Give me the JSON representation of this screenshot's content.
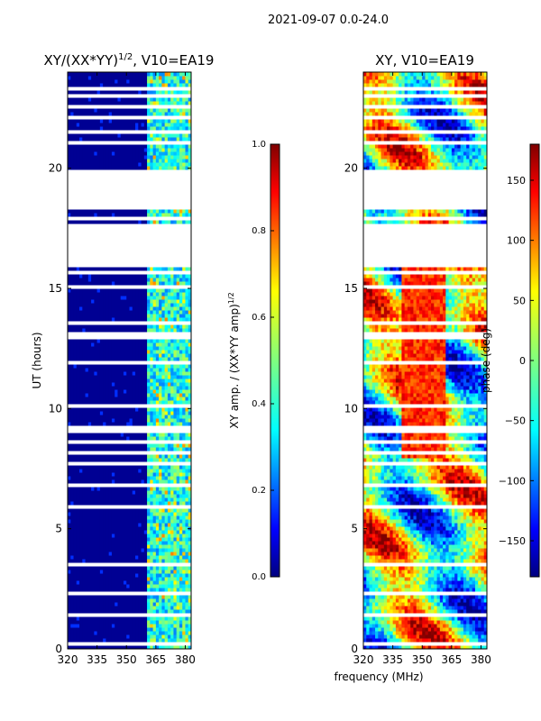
{
  "figure": {
    "suptitle": "2021-09-07 0.0-24.0",
    "shared_xlabel": "frequency (MHz)",
    "shared_ylabel": "UT (hours)"
  },
  "colors": {
    "jet_stops": [
      "#00007f",
      "#0000ff",
      "#007fff",
      "#00ffff",
      "#7fff7f",
      "#ffff00",
      "#ff7f00",
      "#ff0000",
      "#7f0000"
    ],
    "gap": "#ffffff",
    "axes": "#000000"
  },
  "chart_data": [
    {
      "type": "heatmap",
      "title_text": "XY/(XX*YY)",
      "title_exponent": "1/2",
      "title_suffix": ", V10=EA19",
      "xlabel": "frequency (MHz)",
      "ylabel": "UT (hours)",
      "xlim": [
        320,
        383
      ],
      "ylim": [
        0,
        24
      ],
      "xticks": [
        320,
        335,
        350,
        365,
        380
      ],
      "yticks": [
        0,
        5,
        10,
        15,
        20
      ],
      "colorbar": {
        "label": "XY amp. / (XX*YY amp)",
        "label_exponent": "1/2",
        "range": [
          0.0,
          1.0
        ],
        "ticks": [
          "0.0",
          "0.2",
          "0.4",
          "0.6",
          "0.8",
          "1.0"
        ]
      },
      "description_of_values": "normalized amplitude mostly near 0 (dark blue) below ~360 MHz; ~0.3-0.5 (cyan/green) above 360 MHz",
      "low_band_value": 0.02,
      "high_band_start_mhz": 360,
      "high_band_value_range": [
        0.25,
        0.55
      ]
    },
    {
      "type": "heatmap",
      "title": "XY, V10=EA19",
      "xlabel": "frequency (MHz)",
      "ylabel": "",
      "xlim": [
        320,
        383
      ],
      "ylim": [
        0,
        24
      ],
      "xticks": [
        320,
        335,
        350,
        365,
        380
      ],
      "yticks": [
        0,
        5,
        10,
        15,
        20
      ],
      "colorbar": {
        "label": "phase (deg)",
        "range": [
          -180,
          180
        ],
        "ticks": [
          "150",
          "100",
          "50",
          "0",
          "−50",
          "−100",
          "−150"
        ]
      },
      "description_of_values": "XY phase in degrees, spanning -180 to 180 across the band"
    }
  ],
  "data_gaps_ut_hours": [
    [
      0.15,
      0.3
    ],
    [
      0.55,
      0.65
    ],
    [
      1.4,
      1.5
    ],
    [
      2.3,
      2.4
    ],
    [
      3.45,
      3.6
    ],
    [
      4.0,
      4.1
    ],
    [
      5.2,
      5.3
    ],
    [
      5.9,
      6.0
    ],
    [
      6.8,
      6.9
    ],
    [
      7.7,
      7.8
    ],
    [
      8.1,
      8.25
    ],
    [
      8.6,
      8.7
    ],
    [
      9.0,
      9.3
    ],
    [
      10.1,
      10.2
    ],
    [
      10.9,
      11.0
    ],
    [
      11.9,
      12.0
    ],
    [
      12.9,
      13.25
    ],
    [
      13.5,
      13.6
    ],
    [
      14.35,
      14.45
    ],
    [
      15.0,
      15.1
    ],
    [
      15.6,
      15.7
    ],
    [
      15.85,
      17.7
    ],
    [
      17.85,
      17.95
    ],
    [
      18.25,
      19.95
    ],
    [
      20.5,
      20.6
    ],
    [
      21.0,
      21.1
    ],
    [
      21.5,
      21.6
    ],
    [
      22.0,
      22.15
    ],
    [
      22.5,
      22.6
    ],
    [
      22.95,
      23.05
    ],
    [
      23.3,
      23.4
    ]
  ]
}
